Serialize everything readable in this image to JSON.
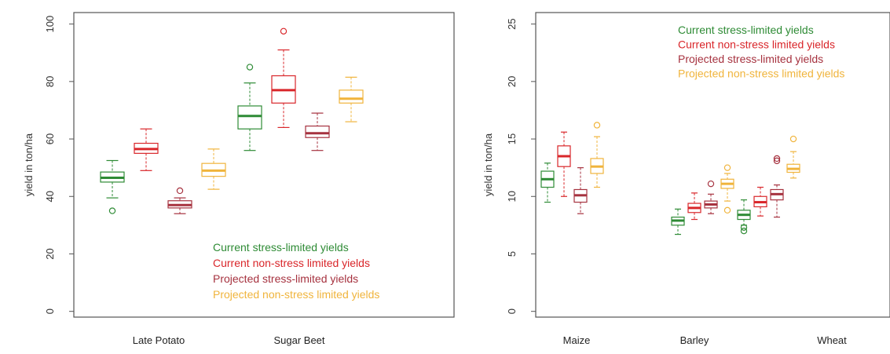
{
  "chart_data": [
    {
      "type": "boxplot",
      "ylabel": "yield in ton/ha",
      "ylim": [
        -2,
        104
      ],
      "yticks": [
        "0",
        "20",
        "40",
        "60",
        "80",
        "100"
      ],
      "categories": [
        "Late Potato",
        "Sugar Beet"
      ],
      "legend_position": "bottom-right",
      "series": [
        {
          "name": "Current stress-limited yields",
          "color": "#2e8b35",
          "boxes": [
            {
              "category": "Late Potato",
              "whisker_low": 39.5,
              "q1": 45.0,
              "median": 46.5,
              "q3": 48.5,
              "whisker_high": 52.5,
              "outliers": [
                35
              ]
            },
            {
              "category": "Sugar Beet",
              "whisker_low": 56.0,
              "q1": 63.5,
              "median": 68.0,
              "q3": 71.5,
              "whisker_high": 79.5,
              "outliers": [
                85
              ]
            }
          ]
        },
        {
          "name": "Current non-stress limited yields",
          "color": "#d9262a",
          "boxes": [
            {
              "category": "Late Potato",
              "whisker_low": 49.0,
              "q1": 55.0,
              "median": 56.5,
              "q3": 58.5,
              "whisker_high": 63.5,
              "outliers": []
            },
            {
              "category": "Sugar Beet",
              "whisker_low": 64.0,
              "q1": 72.5,
              "median": 77.0,
              "q3": 82.0,
              "whisker_high": 91.0,
              "outliers": [
                97.5
              ]
            }
          ]
        },
        {
          "name": "Projected stress-limited yields",
          "color": "#a6323f",
          "boxes": [
            {
              "category": "Late Potato",
              "whisker_low": 34.0,
              "q1": 36.0,
              "median": 37.0,
              "q3": 38.5,
              "whisker_high": 39.5,
              "outliers": [
                42
              ]
            },
            {
              "category": "Sugar Beet",
              "whisker_low": 56.0,
              "q1": 60.5,
              "median": 62.0,
              "q3": 64.5,
              "whisker_high": 69.0,
              "outliers": []
            }
          ]
        },
        {
          "name": "Projected non-stress limited yields",
          "color": "#f0b43c",
          "boxes": [
            {
              "category": "Late Potato",
              "whisker_low": 42.5,
              "q1": 47.0,
              "median": 49.0,
              "q3": 51.5,
              "whisker_high": 56.5,
              "outliers": []
            },
            {
              "category": "Sugar Beet",
              "whisker_low": 66.0,
              "q1": 72.5,
              "median": 74.0,
              "q3": 77.0,
              "whisker_high": 81.5,
              "outliers": []
            }
          ]
        }
      ]
    },
    {
      "type": "boxplot",
      "ylabel": "yield in ton/ha",
      "ylim": [
        -0.5,
        26
      ],
      "yticks": [
        "0",
        "5",
        "10",
        "15",
        "20",
        "25"
      ],
      "categories": [
        "Maize",
        "Barley",
        "Wheat"
      ],
      "legend_position": "top-right",
      "series": [
        {
          "name": "Current stress-limited yields",
          "color": "#2e8b35",
          "boxes": [
            {
              "category": "Maize",
              "whisker_low": 9.5,
              "q1": 10.8,
              "median": 11.5,
              "q3": 12.2,
              "whisker_high": 12.9,
              "outliers": []
            },
            {
              "category": "Barley",
              "whisker_low": 6.7,
              "q1": 7.5,
              "median": 7.9,
              "q3": 8.2,
              "whisker_high": 8.9,
              "outliers": []
            },
            {
              "category": "Wheat",
              "whisker_low": 7.5,
              "q1": 8.0,
              "median": 8.4,
              "q3": 8.8,
              "whisker_high": 9.7,
              "outliers": [
                7.0,
                7.3
              ]
            }
          ]
        },
        {
          "name": "Current non-stress limited yields",
          "color": "#d9262a",
          "boxes": [
            {
              "category": "Maize",
              "whisker_low": 10.0,
              "q1": 12.6,
              "median": 13.5,
              "q3": 14.4,
              "whisker_high": 15.6,
              "outliers": []
            },
            {
              "category": "Barley",
              "whisker_low": 8.0,
              "q1": 8.6,
              "median": 9.0,
              "q3": 9.4,
              "whisker_high": 10.3,
              "outliers": []
            },
            {
              "category": "Wheat",
              "whisker_low": 8.3,
              "q1": 9.1,
              "median": 9.5,
              "q3": 10.0,
              "whisker_high": 10.8,
              "outliers": []
            }
          ]
        },
        {
          "name": "Projected stress-limited yields",
          "color": "#a6323f",
          "boxes": [
            {
              "category": "Maize",
              "whisker_low": 8.5,
              "q1": 9.5,
              "median": 10.1,
              "q3": 10.6,
              "whisker_high": 12.5,
              "outliers": []
            },
            {
              "category": "Barley",
              "whisker_low": 8.5,
              "q1": 9.0,
              "median": 9.3,
              "q3": 9.6,
              "whisker_high": 10.2,
              "outliers": [
                11.1
              ]
            },
            {
              "category": "Wheat",
              "whisker_low": 8.2,
              "q1": 9.7,
              "median": 10.2,
              "q3": 10.6,
              "whisker_high": 11.0,
              "outliers": [
                13.1,
                13.3
              ]
            }
          ]
        },
        {
          "name": "Projected non-stress limited yields",
          "color": "#f0b43c",
          "boxes": [
            {
              "category": "Maize",
              "whisker_low": 10.8,
              "q1": 12.0,
              "median": 12.6,
              "q3": 13.3,
              "whisker_high": 15.2,
              "outliers": [
                16.2
              ]
            },
            {
              "category": "Barley",
              "whisker_low": 9.6,
              "q1": 10.7,
              "median": 11.1,
              "q3": 11.5,
              "whisker_high": 12.0,
              "outliers": [
                8.8,
                12.5
              ]
            },
            {
              "category": "Wheat",
              "whisker_low": 11.6,
              "q1": 12.1,
              "median": 12.4,
              "q3": 12.8,
              "whisker_high": 13.9,
              "outliers": [
                15.0
              ]
            }
          ]
        }
      ]
    }
  ]
}
